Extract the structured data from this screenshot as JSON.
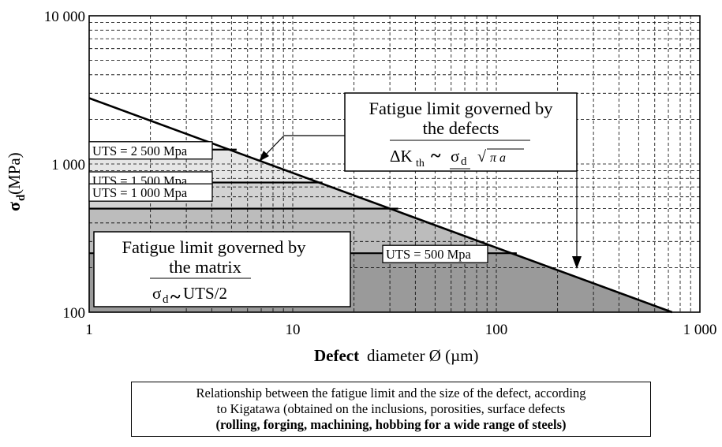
{
  "chart_data": {
    "type": "area",
    "x_scale": "log",
    "y_scale": "log",
    "xlim": [
      1,
      1000
    ],
    "ylim": [
      100,
      10000
    ],
    "x_ticks": [
      "1",
      "10",
      "100",
      "1 000"
    ],
    "y_ticks": [
      "100",
      "1 000",
      "10 000"
    ],
    "xlabel_bold": "Defect",
    "xlabel_rest": "diameter  Ø (µm)",
    "ylabel": "σ",
    "ylabel_sub": "d",
    "ylabel_unit": " (MPa)",
    "grid": true,
    "boundary_line": {
      "x": [
        1,
        730
      ],
      "y": [
        2780,
        100
      ]
    },
    "uts_levels": [
      {
        "label": "UTS = 2 500 Mpa",
        "value": 1250,
        "x_end": 5.3
      },
      {
        "label": "UTS = 1 500 Mpa",
        "value": 750,
        "x_end": 14
      },
      {
        "label": "UTS = 1 000 Mpa",
        "value": 500,
        "x_end": 33
      },
      {
        "label": "UTS = 500 Mpa",
        "value": 250,
        "x_end": 126
      }
    ],
    "annotation_defects": {
      "line1": "Fatigue limit governed by",
      "line2": "the defects",
      "formula_delta": "ΔK",
      "formula_sub": "th",
      "formula_sim": "~",
      "formula_sigma": "σ",
      "formula_sigma_sub": "d",
      "formula_sqrt": "√",
      "formula_pi_a": "π a",
      "arrow_targets": [
        {
          "x": 6.6,
          "y": 1080
        },
        {
          "x": 250,
          "y": 165
        }
      ]
    },
    "annotation_matrix": {
      "line1": "Fatigue limit governed by",
      "line2": "the matrix",
      "formula_sigma": "σ",
      "formula_sub": "d",
      "formula_sim": "~",
      "formula_rest": " UTS/2"
    },
    "fill_colors": [
      "#e6e6e6",
      "#d2d2d2",
      "#bcbcbc",
      "#9a9a9a"
    ]
  },
  "caption": {
    "line1": "Relationship between the fatigue limit and the size of the defect, according",
    "line2": "to Kigatawa (obtained on the inclusions, porosities, surface defects",
    "line3": "(rolling, forging, machining, hobbing for a wide range of steels)"
  }
}
